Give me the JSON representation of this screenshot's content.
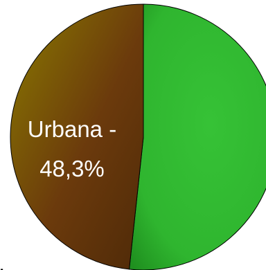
{
  "chart_data": {
    "type": "pie",
    "slices": [
      {
        "label": "Urbana - 48,3%",
        "value": 48.3,
        "color": "#6b3a0c",
        "color_light": "#7e6d08",
        "color_dark": "#5e2e08"
      },
      {
        "label": "",
        "value": 51.7,
        "color": "#2fb52f",
        "color_light": "#36c236",
        "color_dark": "#1e8a1e"
      }
    ],
    "labels": {
      "urbana_line1": "Urbana -",
      "urbana_line2": "48,3%",
      "partial_glyph": "."
    },
    "colors": {
      "outline": "#000000",
      "label_text": "#ffffff"
    }
  }
}
